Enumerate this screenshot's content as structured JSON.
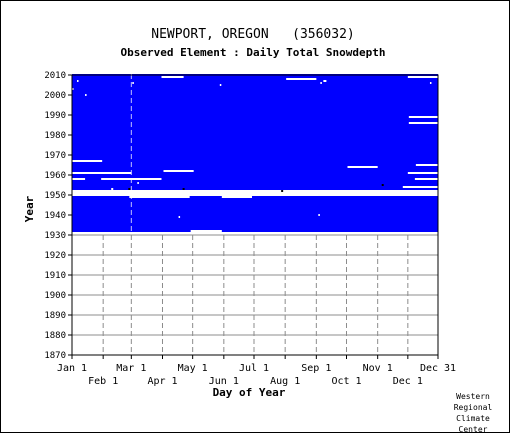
{
  "chart_data": {
    "type": "heatmap",
    "title": "NEWPORT, OREGON   (356032)",
    "subtitle": "Observed Element : Daily Total Snowdepth",
    "xlabel": "Day of Year",
    "ylabel": "Year",
    "x_ticks_top_row": [
      "Jan 1",
      "Mar 1",
      "May 1",
      "Jul 1",
      "Sep 1",
      "Nov 1",
      "Dec 31"
    ],
    "x_ticks_bottom_row": [
      "Feb 1",
      "Apr 1",
      "Jun 1",
      "Aug 1",
      "Oct 1",
      "Dec 1"
    ],
    "month_start_days": [
      1,
      32,
      60,
      91,
      121,
      152,
      182,
      213,
      244,
      274,
      305,
      335,
      365
    ],
    "y_ticks": [
      1870,
      1880,
      1890,
      1900,
      1910,
      1920,
      1930,
      1940,
      1950,
      1960,
      1970,
      1980,
      1990,
      2000,
      2010
    ],
    "xlim": [
      1,
      365
    ],
    "ylim": [
      1870,
      2010
    ],
    "fill_color": "#0000ff",
    "grid_color": "#8c8c8c",
    "record_years": [
      1931,
      2010
    ],
    "no_record_years": [
      1951,
      1952
    ],
    "missing_segments": [
      {
        "year": 1931,
        "day_start": 1,
        "day_end": 365
      },
      {
        "year": 1932,
        "day_start": 119,
        "day_end": 150
      },
      {
        "year": 1939,
        "day_start": 107,
        "day_end": 108
      },
      {
        "year": 1940,
        "day_start": 246,
        "day_end": 247
      },
      {
        "year": 1949,
        "day_start": 58,
        "day_end": 118
      },
      {
        "year": 1949,
        "day_start": 150,
        "day_end": 180
      },
      {
        "year": 1950,
        "day_start": 1,
        "day_end": 365
      },
      {
        "year": 1951,
        "day_start": 1,
        "day_end": 365
      },
      {
        "year": 1952,
        "day_start": 1,
        "day_end": 365
      },
      {
        "year": 1953,
        "day_start": 40,
        "day_end": 42
      },
      {
        "year": 1954,
        "day_start": 330,
        "day_end": 365
      },
      {
        "year": 1956,
        "day_start": 66,
        "day_end": 67
      },
      {
        "year": 1958,
        "day_start": 1,
        "day_end": 14
      },
      {
        "year": 1958,
        "day_start": 30,
        "day_end": 90
      },
      {
        "year": 1958,
        "day_start": 342,
        "day_end": 365
      },
      {
        "year": 1961,
        "day_start": 1,
        "day_end": 60
      },
      {
        "year": 1961,
        "day_start": 335,
        "day_end": 365
      },
      {
        "year": 1962,
        "day_start": 92,
        "day_end": 122
      },
      {
        "year": 1964,
        "day_start": 275,
        "day_end": 305
      },
      {
        "year": 1965,
        "day_start": 343,
        "day_end": 365
      },
      {
        "year": 1967,
        "day_start": 1,
        "day_end": 31
      },
      {
        "year": 1986,
        "day_start": 336,
        "day_end": 365
      },
      {
        "year": 1989,
        "day_start": 336,
        "day_end": 365
      },
      {
        "year": 2000,
        "day_start": 14,
        "day_end": 15
      },
      {
        "year": 2003,
        "day_start": 1,
        "day_end": 2
      },
      {
        "year": 2005,
        "day_start": 148,
        "day_end": 149
      },
      {
        "year": 2006,
        "day_start": 61,
        "day_end": 62
      },
      {
        "year": 2006,
        "day_start": 248,
        "day_end": 249
      },
      {
        "year": 2006,
        "day_start": 357,
        "day_end": 358
      },
      {
        "year": 2007,
        "day_start": 6,
        "day_end": 7
      },
      {
        "year": 2007,
        "day_start": 251,
        "day_end": 254
      },
      {
        "year": 2008,
        "day_start": 214,
        "day_end": 244
      },
      {
        "year": 2009,
        "day_start": 90,
        "day_end": 112
      },
      {
        "year": 2009,
        "day_start": 335,
        "day_end": 365
      }
    ],
    "missing_dots": [
      {
        "year": 1953,
        "day": 58
      },
      {
        "year": 1953,
        "day": 112
      },
      {
        "year": 1952,
        "day": 210
      },
      {
        "year": 1955,
        "day": 310
      }
    ]
  },
  "credit": [
    "Western",
    "Regional",
    "Climate",
    "Center"
  ]
}
